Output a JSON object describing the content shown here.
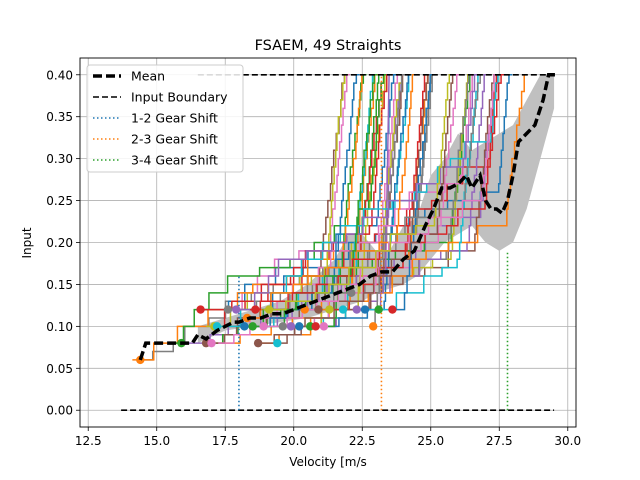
{
  "chart_data": {
    "type": "line",
    "title": "FSAEM, 49 Straights",
    "xlabel": "Velocity [m/s",
    "ylabel": "Input",
    "xlim": [
      12.2,
      30.3
    ],
    "ylim": [
      -0.02,
      0.42
    ],
    "xticks": [
      "12.5",
      "15.0",
      "17.5",
      "20.0",
      "22.5",
      "25.0",
      "27.5",
      "30.0"
    ],
    "xtick_values": [
      12.5,
      15.0,
      17.5,
      20.0,
      22.5,
      25.0,
      27.5,
      30.0
    ],
    "yticks": [
      "0.00",
      "0.05",
      "0.10",
      "0.15",
      "0.20",
      "0.25",
      "0.30",
      "0.35",
      "0.40"
    ],
    "ytick_values": [
      0.0,
      0.05,
      0.1,
      0.15,
      0.2,
      0.25,
      0.3,
      0.35,
      0.4
    ],
    "grid": true,
    "legend_position": "top-left",
    "legend": [
      "Mean",
      "Input Boundary",
      "1-2 Gear Shift",
      "2-3 Gear Shift",
      "3-4 Gear Shift"
    ],
    "colors": {
      "mean": "#000000",
      "boundary": "#000000",
      "shift_12": "#1f77b4",
      "shift_23": "#ff7f0e",
      "shift_34": "#2ca02c",
      "band": "#c0c0c0",
      "grid": "#b0b0b0",
      "palette": [
        "#1f77b4",
        "#ff7f0e",
        "#2ca02c",
        "#d62728",
        "#9467bd",
        "#8c564b",
        "#e377c2",
        "#7f7f7f",
        "#bcbd22",
        "#17becf"
      ]
    },
    "mean": {
      "x": [
        14.4,
        14.5,
        14.6,
        15.6,
        16.3,
        16.5,
        16.8,
        17.0,
        17.2,
        17.5,
        17.8,
        18.0,
        18.4,
        18.8,
        19.2,
        19.6,
        20.0,
        20.4,
        20.8,
        21.2,
        21.6,
        22.0,
        22.4,
        22.8,
        23.2,
        23.6,
        24.0,
        24.4,
        24.8,
        25.1,
        25.4,
        25.7,
        26.0,
        26.3,
        26.5,
        26.8,
        27.0,
        27.2,
        27.4,
        27.6,
        27.8,
        28.0,
        28.2,
        28.5,
        28.8,
        29.1,
        29.3,
        29.6
      ],
      "y": [
        0.06,
        0.07,
        0.08,
        0.08,
        0.08,
        0.09,
        0.085,
        0.09,
        0.095,
        0.1,
        0.105,
        0.105,
        0.11,
        0.11,
        0.115,
        0.115,
        0.12,
        0.125,
        0.13,
        0.135,
        0.14,
        0.145,
        0.15,
        0.16,
        0.165,
        0.165,
        0.18,
        0.19,
        0.22,
        0.24,
        0.265,
        0.265,
        0.27,
        0.28,
        0.265,
        0.28,
        0.25,
        0.24,
        0.24,
        0.235,
        0.25,
        0.28,
        0.32,
        0.33,
        0.34,
        0.37,
        0.4,
        0.4
      ]
    },
    "band": {
      "x": [
        16.5,
        17.5,
        18.5,
        19.5,
        20.5,
        21.5,
        22.0,
        22.5,
        23.0,
        23.5,
        24.0,
        24.5,
        25.0,
        25.5,
        26.0,
        26.5,
        27.0,
        27.5,
        28.0,
        28.5,
        29.0,
        29.5
      ],
      "upper": [
        0.1,
        0.11,
        0.12,
        0.13,
        0.15,
        0.18,
        0.21,
        0.21,
        0.19,
        0.19,
        0.22,
        0.23,
        0.28,
        0.3,
        0.33,
        0.31,
        0.32,
        0.33,
        0.34,
        0.37,
        0.4,
        0.4
      ],
      "lower": [
        0.08,
        0.095,
        0.1,
        0.105,
        0.11,
        0.12,
        0.125,
        0.13,
        0.14,
        0.145,
        0.15,
        0.16,
        0.18,
        0.2,
        0.21,
        0.22,
        0.2,
        0.19,
        0.2,
        0.24,
        0.3,
        0.36
      ]
    },
    "input_boundary": [
      {
        "x": [
          13.7,
          29.5
        ],
        "y": [
          0.0,
          0.0
        ]
      },
      {
        "x": [
          16.5,
          29.5
        ],
        "y": [
          0.4,
          0.4
        ]
      }
    ],
    "gear_shifts": [
      {
        "name": "1-2 Gear Shift",
        "x": 18.0,
        "y": [
          0.0,
          0.16
        ]
      },
      {
        "name": "2-3 Gear Shift",
        "x": 23.2,
        "y": [
          0.0,
          0.4
        ]
      },
      {
        "name": "3-4 Gear Shift",
        "x": 27.8,
        "y": [
          0.0,
          0.19
        ]
      }
    ],
    "straights_count": 49,
    "straight_start_points": [
      {
        "x": 14.4,
        "y": 0.06
      },
      {
        "x": 15.9,
        "y": 0.08
      },
      {
        "x": 16.6,
        "y": 0.12
      },
      {
        "x": 16.8,
        "y": 0.08
      },
      {
        "x": 17.0,
        "y": 0.08
      },
      {
        "x": 17.1,
        "y": 0.1
      },
      {
        "x": 17.2,
        "y": 0.1
      },
      {
        "x": 17.6,
        "y": 0.12
      },
      {
        "x": 17.9,
        "y": 0.12
      },
      {
        "x": 18.2,
        "y": 0.1
      },
      {
        "x": 18.3,
        "y": 0.11
      },
      {
        "x": 18.5,
        "y": 0.1
      },
      {
        "x": 18.6,
        "y": 0.12
      },
      {
        "x": 18.7,
        "y": 0.08
      },
      {
        "x": 18.9,
        "y": 0.1
      },
      {
        "x": 19.1,
        "y": 0.12
      },
      {
        "x": 19.4,
        "y": 0.08
      },
      {
        "x": 19.6,
        "y": 0.1
      },
      {
        "x": 19.9,
        "y": 0.1
      },
      {
        "x": 20.2,
        "y": 0.1
      },
      {
        "x": 20.4,
        "y": 0.12
      },
      {
        "x": 20.6,
        "y": 0.1
      },
      {
        "x": 20.8,
        "y": 0.1
      },
      {
        "x": 20.9,
        "y": 0.12
      },
      {
        "x": 21.1,
        "y": 0.1
      },
      {
        "x": 21.3,
        "y": 0.12
      },
      {
        "x": 21.8,
        "y": 0.12
      },
      {
        "x": 22.1,
        "y": 0.14
      },
      {
        "x": 22.3,
        "y": 0.12
      },
      {
        "x": 22.6,
        "y": 0.12
      },
      {
        "x": 22.9,
        "y": 0.1
      },
      {
        "x": 23.1,
        "y": 0.12
      },
      {
        "x": 23.6,
        "y": 0.12
      }
    ]
  }
}
